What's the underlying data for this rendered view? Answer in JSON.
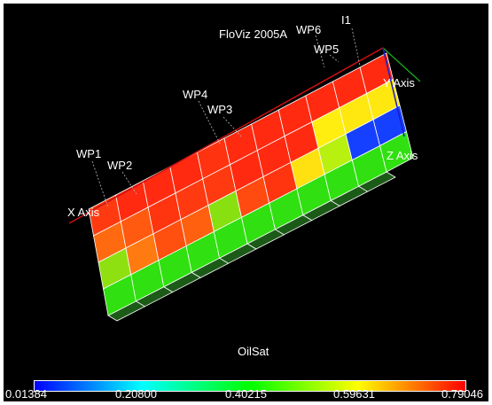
{
  "viewer": {
    "title": "FloViz 2005A",
    "property": "OilSat"
  },
  "wells": [
    "WP1",
    "WP2",
    "WP4",
    "WP3",
    "WP6",
    "WP5",
    "I1"
  ],
  "axes": {
    "x": "X Axis",
    "y": "Y Axis",
    "z": "Z Axis"
  },
  "colorbar": {
    "min": 0.01384,
    "max": 0.79046,
    "ticks": [
      "0.01384",
      "0.20800",
      "0.40215",
      "0.59631",
      "0.79046"
    ],
    "stops": [
      "#0000ff",
      "#00ffff",
      "#00ff00",
      "#ffff00",
      "#ff0000"
    ]
  },
  "grid": {
    "columns": 10,
    "layers": 4,
    "front_face_colors": [
      [
        "#ff3a10",
        "#ff2a10",
        "#ff2a10",
        "#ff2a10",
        "#ff3310",
        "#ff2a10",
        "#ff2a10",
        "#ff2a10",
        "#ff2a10",
        "#ff2a10"
      ],
      [
        "#ff6a10",
        "#ff5a10",
        "#ff3510",
        "#ff3a10",
        "#ff3a10",
        "#ff2a10",
        "#ff2a10",
        "#ff2a10",
        "#ffee10",
        "#ffe810"
      ],
      [
        "#8fe010",
        "#ff7a10",
        "#ff5010",
        "#ff6010",
        "#88e010",
        "#ff4a10",
        "#ff3510",
        "#ffe010",
        "#b8f010",
        "#1540ff"
      ],
      [
        "#30e010",
        "#30e010",
        "#30e010",
        "#30e010",
        "#30e010",
        "#30e010",
        "#30e010",
        "#30e010",
        "#30e010",
        "#30e010"
      ]
    ]
  }
}
